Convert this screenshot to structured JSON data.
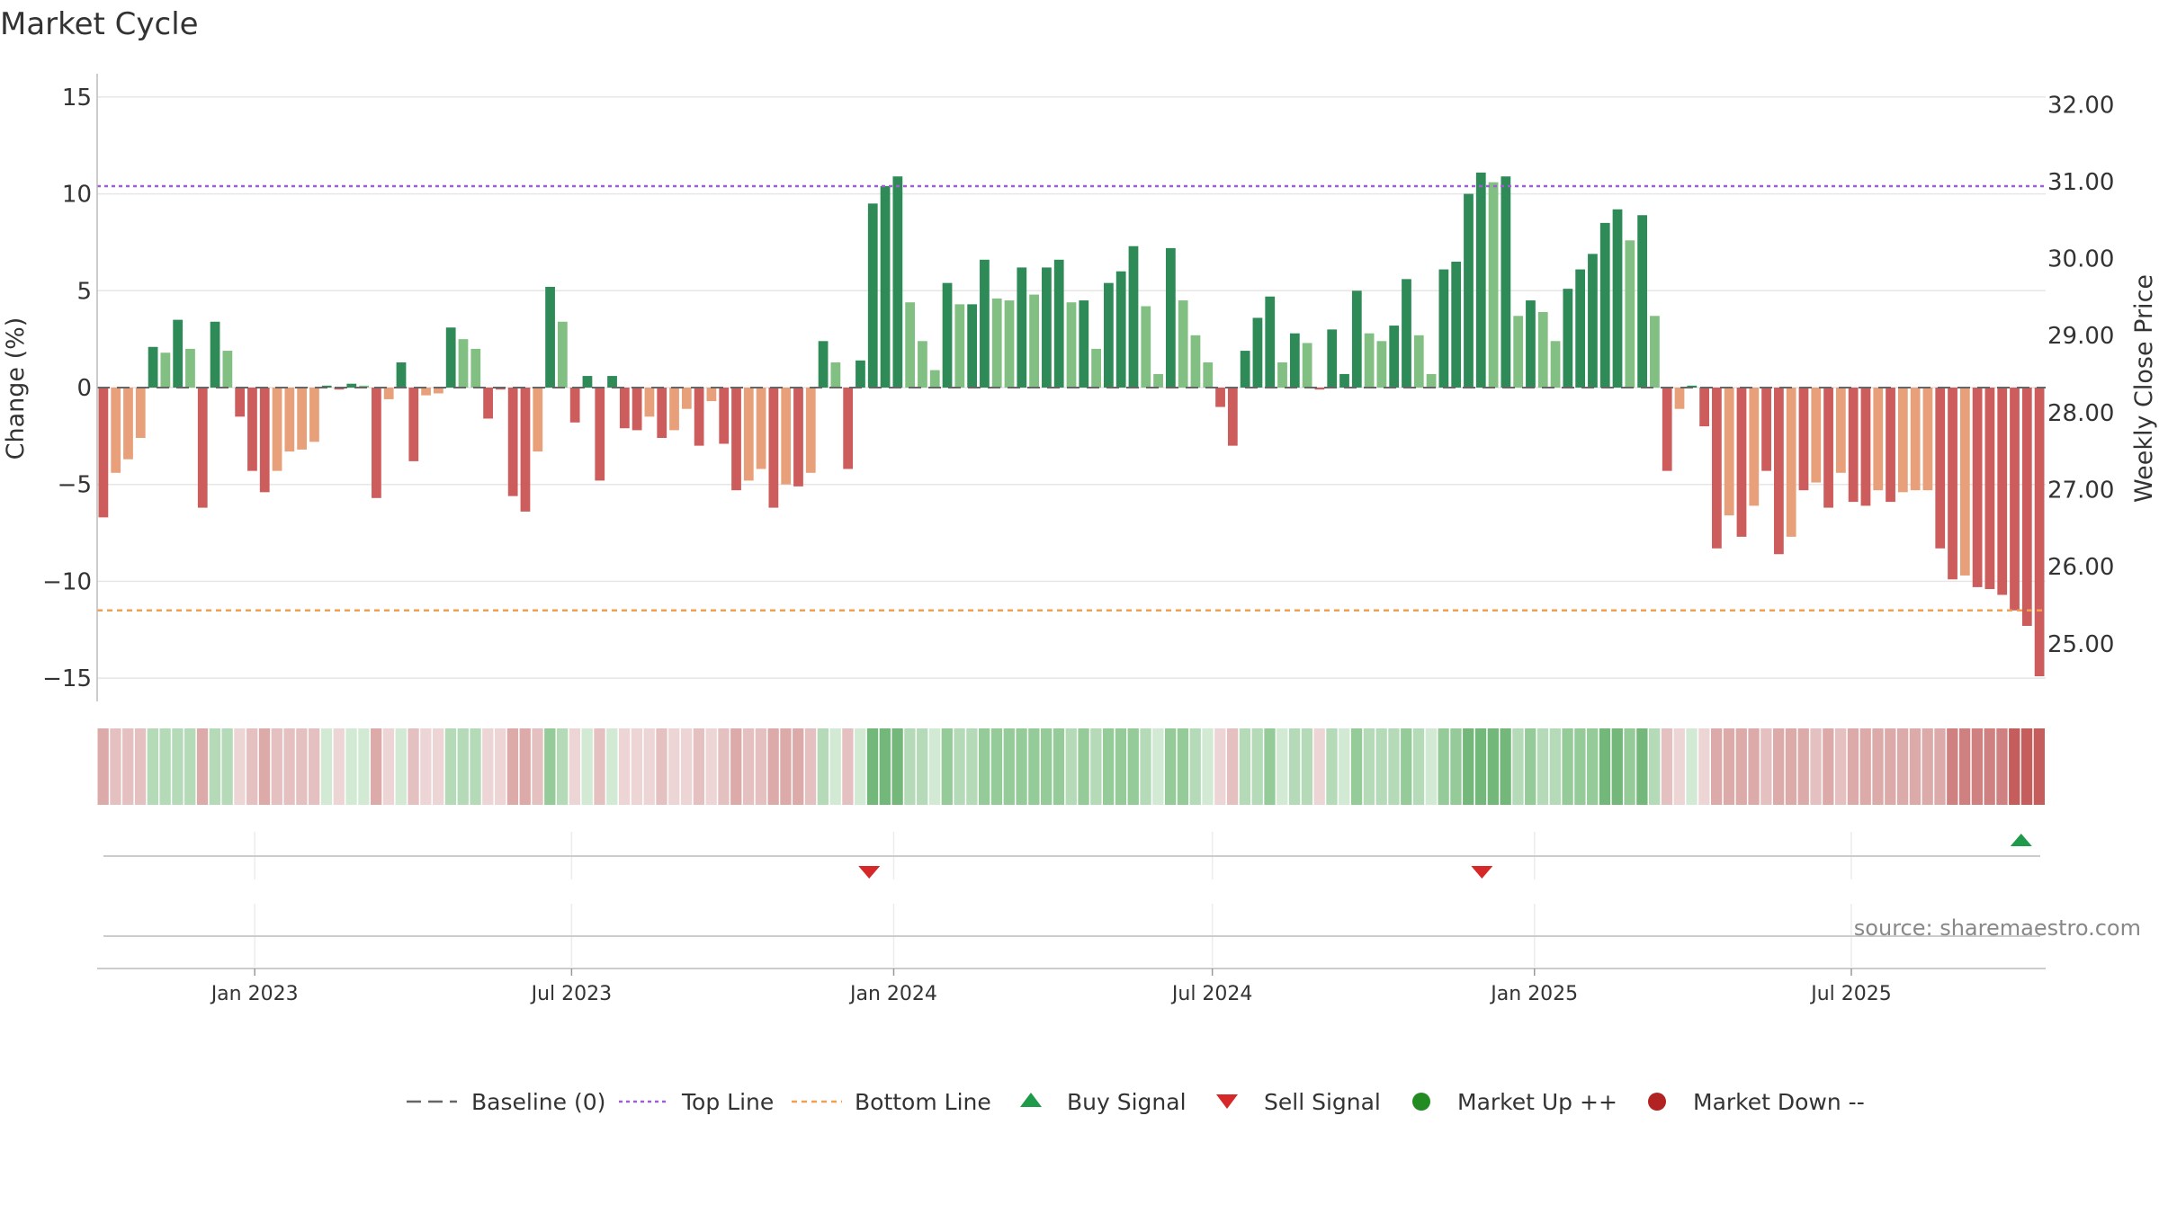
{
  "chart_data": {
    "type": "bar",
    "title": "Market Cycle",
    "ylabel": "Change (%)",
    "y2label": "Weekly Close Price",
    "ylim": [
      -16.2,
      16.2
    ],
    "y2lim": [
      24.25,
      32.4
    ],
    "y_ticks": [
      15,
      10,
      5,
      0,
      -5,
      -10,
      -15
    ],
    "y_tick_labels": [
      "15",
      "10",
      "5",
      "0",
      "−5",
      "−10",
      "−15"
    ],
    "y2_ticks": [
      32,
      31,
      30,
      29,
      28,
      27,
      26,
      25
    ],
    "y2_tick_labels": [
      "32.00",
      "31.00",
      "30.00",
      "29.00",
      "28.00",
      "27.00",
      "26.00",
      "25.00"
    ],
    "x_start": "2022-10-03",
    "x_end": "2025-10-20",
    "x_ticks": [
      {
        "date": "2023-01-01",
        "label": "Jan 2023"
      },
      {
        "date": "2023-07-01",
        "label": "Jul 2023"
      },
      {
        "date": "2024-01-01",
        "label": "Jan 2024"
      },
      {
        "date": "2024-07-01",
        "label": "Jul 2024"
      },
      {
        "date": "2025-01-01",
        "label": "Jan 2025"
      },
      {
        "date": "2025-07-01",
        "label": "Jul 2025"
      }
    ],
    "top_line": 10.4,
    "bottom_line": -11.5,
    "series": [
      {
        "values": [
          -6.7,
          -4.4,
          -3.7,
          -2.6,
          2.1,
          1.8,
          3.5,
          2.0,
          -6.2,
          3.4,
          1.9,
          -1.5,
          -4.3,
          -5.4,
          -4.3,
          -3.3,
          -3.2,
          -2.8,
          0.1,
          -0.1,
          0.2,
          0.1,
          -5.7,
          -0.6,
          1.3,
          -3.8,
          -0.4,
          -0.3,
          3.1,
          2.5,
          2.0,
          -1.6,
          -0.1,
          -5.6,
          -6.4,
          -3.3,
          5.2,
          3.4,
          -1.8,
          0.6,
          -4.8,
          0.6,
          -2.1,
          -2.2,
          -1.5,
          -2.6,
          -2.2,
          -1.1,
          -3.0,
          -0.7,
          -2.9,
          -5.3,
          -4.8,
          -4.2,
          -6.2,
          -5.0,
          -5.1,
          -4.4,
          2.4,
          1.3,
          -4.2,
          1.4,
          9.5,
          10.4,
          10.9,
          4.4,
          2.4,
          0.9,
          5.4,
          4.3,
          4.3,
          6.6,
          4.6,
          4.5,
          6.2,
          4.8,
          6.2,
          6.6,
          4.4,
          4.5,
          2.0,
          5.4,
          6.0,
          7.3,
          4.2,
          0.7,
          7.2,
          4.5,
          2.7,
          1.3,
          -1.0,
          -3.0,
          1.9,
          3.6,
          4.7,
          1.3,
          2.8,
          2.3,
          -0.1,
          3.0,
          0.7,
          5.0,
          2.8,
          2.4,
          3.2,
          5.6,
          2.7,
          0.7,
          6.1,
          6.5,
          10.0,
          11.1,
          10.6,
          10.9,
          3.7,
          4.5,
          3.9,
          2.4,
          5.1,
          6.1,
          6.9,
          8.5,
          9.2,
          7.6,
          8.9,
          3.7,
          -4.3,
          -1.1,
          0.1,
          -2.0,
          -8.3,
          -6.6,
          -7.7,
          -6.1,
          -4.3,
          -8.6,
          -7.7,
          -5.3,
          -4.9,
          -6.2,
          -4.4,
          -5.9,
          -6.1,
          -5.3,
          -5.9,
          -5.4,
          -5.3,
          -5.3,
          -8.3,
          -9.9,
          -9.7,
          -10.3,
          -10.4,
          -10.7,
          -11.5,
          -12.3,
          -14.9
        ],
        "colors": [
          "r",
          "o",
          "o",
          "o",
          "g",
          "l",
          "g",
          "l",
          "r",
          "g",
          "l",
          "r",
          "r",
          "r",
          "o",
          "o",
          "o",
          "o",
          "g",
          "r",
          "g",
          "l",
          "r",
          "o",
          "g",
          "r",
          "o",
          "o",
          "g",
          "l",
          "l",
          "r",
          "r",
          "r",
          "r",
          "o",
          "g",
          "l",
          "r",
          "g",
          "r",
          "g",
          "r",
          "r",
          "o",
          "r",
          "o",
          "o",
          "r",
          "o",
          "r",
          "r",
          "o",
          "o",
          "r",
          "o",
          "r",
          "o",
          "g",
          "l",
          "r",
          "g",
          "g",
          "g",
          "g",
          "l",
          "l",
          "l",
          "g",
          "l",
          "g",
          "g",
          "l",
          "l",
          "g",
          "l",
          "g",
          "g",
          "l",
          "g",
          "l",
          "g",
          "g",
          "g",
          "l",
          "l",
          "g",
          "l",
          "l",
          "l",
          "r",
          "r",
          "g",
          "g",
          "g",
          "l",
          "g",
          "l",
          "r",
          "g",
          "g",
          "g",
          "l",
          "l",
          "g",
          "g",
          "l",
          "l",
          "g",
          "g",
          "g",
          "g",
          "l",
          "g",
          "l",
          "g",
          "l",
          "l",
          "g",
          "g",
          "g",
          "g",
          "g",
          "l",
          "g",
          "l",
          "r",
          "o",
          "g",
          "r",
          "r",
          "o",
          "r",
          "o",
          "r",
          "r",
          "o",
          "r",
          "o",
          "r",
          "o",
          "r",
          "r",
          "o",
          "r",
          "o",
          "o",
          "o",
          "r",
          "r",
          "o",
          "r",
          "r",
          "r",
          "r",
          "r",
          "r"
        ]
      }
    ],
    "strip_palette": {
      "g4": "#74b77a",
      "g3": "#95ca99",
      "g2": "#b4dab7",
      "g1": "#d2ead4",
      "r1": "#eed5d5",
      "r2": "#e5c0c0",
      "r3": "#ddaaaa",
      "r4": "#cf8181",
      "r5": "#c65d5d"
    },
    "bar_palette": {
      "g": "#2e8b57",
      "l": "#82bf82",
      "r": "#cd5c5c",
      "o": "#e8a07a"
    },
    "line_colors": {
      "baseline": "#666666",
      "top": "#9f5fd1",
      "bottom": "#f0a050",
      "buy": "#1f9a4a",
      "sell": "#d62828",
      "up": "#228b22",
      "down": "#b22222"
    },
    "signals": [
      {
        "type": "sell",
        "date": "2023-12-18"
      },
      {
        "type": "sell",
        "date": "2024-12-02"
      },
      {
        "type": "buy",
        "date": "2025-10-06"
      }
    ],
    "legend_position": "bottom",
    "legend": [
      {
        "key": "baseline",
        "label": "Baseline (0)"
      },
      {
        "key": "top",
        "label": "Top Line"
      },
      {
        "key": "bottom",
        "label": "Bottom Line"
      },
      {
        "key": "buy",
        "label": "Buy Signal"
      },
      {
        "key": "sell",
        "label": "Sell Signal"
      },
      {
        "key": "up",
        "label": "Market Up ++"
      },
      {
        "key": "down",
        "label": "Market Down --"
      }
    ],
    "source": "source: sharemaestro.com"
  }
}
